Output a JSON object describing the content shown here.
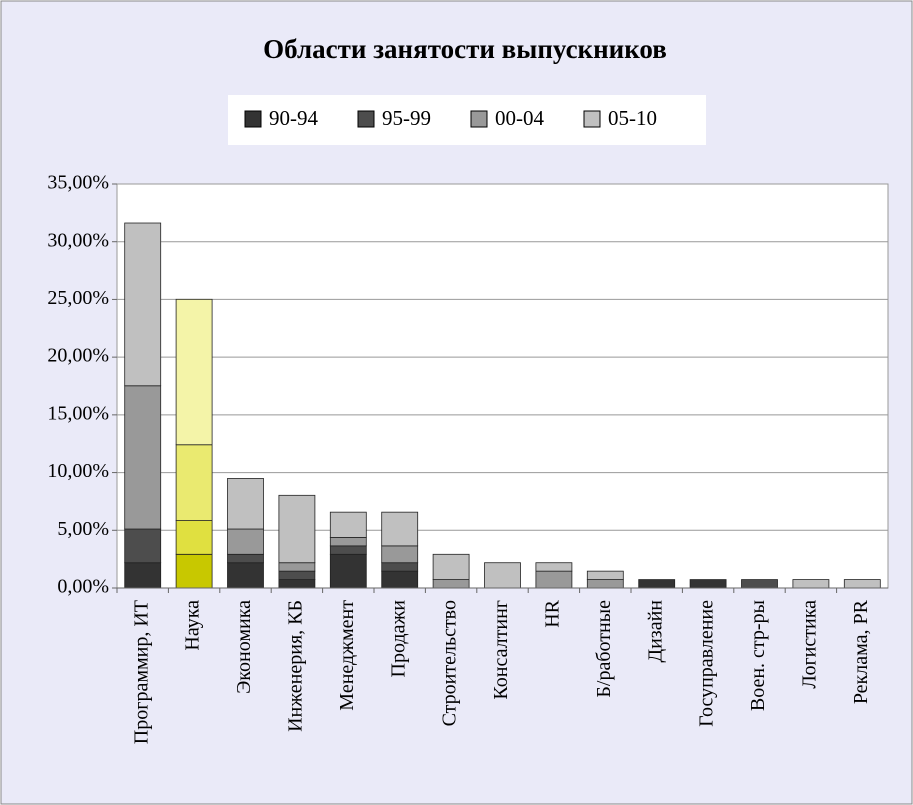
{
  "chart_data": {
    "type": "stacked_bar",
    "title": "Области занятости выпускников",
    "categories": [
      "Программир, ИТ",
      "Наука",
      "Экономика",
      "Инженерия, КБ",
      "Менеджмент",
      "Продажи",
      "Строительство",
      "Консалтинг",
      "HR",
      "Б/работные",
      "Дизайн",
      "Госуправление",
      "Воен. стр-ры",
      "Логистика",
      "Реклама, PR"
    ],
    "series": [
      {
        "name": "90-94",
        "color": "#333333",
        "highlight_color": "#c8c800",
        "values": [
          2.19,
          2.92,
          2.19,
          0.73,
          2.92,
          1.46,
          0,
          0,
          0,
          0,
          0.73,
          0.73,
          0,
          0,
          0
        ]
      },
      {
        "name": "95-99",
        "color": "#4d4d4d",
        "highlight_color": "#e0e040",
        "values": [
          2.92,
          2.92,
          0.73,
          0.73,
          0.73,
          0.73,
          0,
          0,
          0,
          0,
          0,
          0,
          0.73,
          0,
          0
        ]
      },
      {
        "name": "00-04",
        "color": "#999999",
        "highlight_color": "#eaea70",
        "values": [
          12.41,
          6.57,
          2.19,
          0.73,
          0.73,
          1.46,
          0.73,
          0,
          1.46,
          0.73,
          0,
          0,
          0,
          0,
          0
        ]
      },
      {
        "name": "05-10",
        "color": "#c0c0c0",
        "highlight_color": "#f4f4a8",
        "values": [
          14.1,
          12.6,
          4.38,
          5.84,
          2.19,
          2.92,
          2.19,
          2.19,
          0.73,
          0.73,
          0,
          0,
          0,
          0.73,
          0.73
        ]
      }
    ],
    "highlight_index": 1,
    "ylim": [
      0,
      35
    ],
    "yticks": [
      {
        "value": 0,
        "label": "0,00%"
      },
      {
        "value": 5,
        "label": "5,00%"
      },
      {
        "value": 10,
        "label": "10,00%"
      },
      {
        "value": 15,
        "label": "15,00%"
      },
      {
        "value": 20,
        "label": "20,00%"
      },
      {
        "value": 25,
        "label": "25,00%"
      },
      {
        "value": 30,
        "label": "30,00%"
      },
      {
        "value": 35,
        "label": "35,00%"
      }
    ],
    "grid": true
  }
}
